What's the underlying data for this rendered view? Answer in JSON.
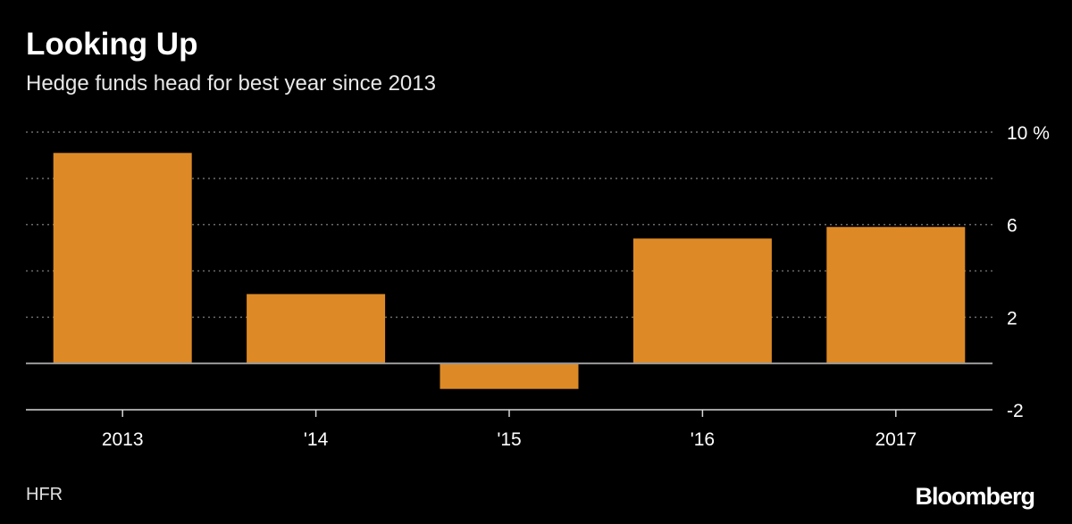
{
  "header": {
    "title": "Looking Up",
    "subtitle": "Hedge funds head for best year since 2013"
  },
  "footer": {
    "source": "HFR",
    "brand": "Bloomberg"
  },
  "colors": {
    "bar": "#DD8A26",
    "background": "#000000",
    "grid": "#6b6b6b",
    "text": "#ffffff"
  },
  "chart_data": {
    "type": "bar",
    "title": "Looking Up",
    "subtitle": "Hedge funds head for best year since 2013",
    "categories": [
      "2013",
      "'14",
      "'15",
      "'16",
      "2017"
    ],
    "values": [
      9.1,
      3.0,
      -1.1,
      5.4,
      5.9
    ],
    "ylim": [
      -2,
      10
    ],
    "yticks": [
      -2,
      2,
      6,
      10
    ],
    "ytick_labels": [
      "-2",
      "2",
      "6",
      "10 %"
    ],
    "grid": true,
    "y_axis_position": "right",
    "legend": "none"
  }
}
